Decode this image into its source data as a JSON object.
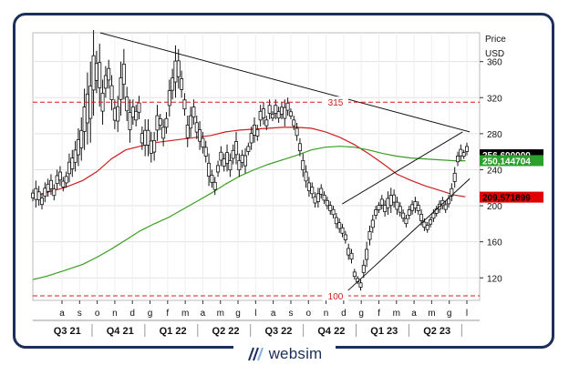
{
  "brand": {
    "name": "websim"
  },
  "chart_data": {
    "type": "candlestick",
    "yaxis": {
      "title": "Price",
      "unit": "USD",
      "ticks": [
        120,
        160,
        200,
        240,
        280,
        320,
        360
      ],
      "ylim": [
        95,
        392
      ]
    },
    "xaxis": {
      "months": [
        "a",
        "s",
        "o",
        "n",
        "d",
        "g",
        "f",
        "m",
        "a",
        "m",
        "g",
        "l",
        "a",
        "s",
        "o",
        "n",
        "d",
        "g",
        "f",
        "m",
        "a",
        "m",
        "g",
        "l"
      ],
      "quarters": [
        "Q3 21",
        "Q4 21",
        "Q1 22",
        "Q2 22",
        "Q3 22",
        "Q4 22",
        "Q1 23",
        "Q2 23"
      ]
    },
    "grid": true,
    "horizontal_lines": [
      {
        "label": "315",
        "value": 315,
        "color": "#d01c1c",
        "style": "dashed"
      },
      {
        "label": "100",
        "value": 100,
        "color": "#d01c1c",
        "style": "dashed"
      }
    ],
    "price_tags": [
      {
        "label": "256,600000",
        "value": 256.6,
        "bg": "#000000",
        "fg": "#ffffff"
      },
      {
        "label": "250,144704",
        "value": 250.14,
        "bg": "#2ca02c",
        "fg": "#ffffff"
      },
      {
        "label": "209,571899",
        "value": 209.57,
        "bg": "#e00000",
        "fg": "#000000"
      }
    ],
    "series": [
      {
        "name": "",
        "kind": "moving_average",
        "color": "#cc1f1f",
        "points": [
          [
            0,
            210
          ],
          [
            10,
            215
          ],
          [
            22,
            220
          ],
          [
            35,
            228
          ],
          [
            45,
            238
          ],
          [
            55,
            252
          ],
          [
            65,
            262
          ],
          [
            75,
            266
          ],
          [
            85,
            270
          ],
          [
            95,
            272
          ],
          [
            105,
            274
          ],
          [
            115,
            276
          ],
          [
            125,
            278
          ],
          [
            135,
            282
          ],
          [
            145,
            284
          ],
          [
            155,
            285
          ],
          [
            165,
            286
          ],
          [
            175,
            287
          ],
          [
            185,
            287
          ],
          [
            195,
            286
          ],
          [
            205,
            282
          ],
          [
            215,
            276
          ],
          [
            225,
            268
          ],
          [
            235,
            258
          ],
          [
            245,
            247
          ],
          [
            255,
            235
          ],
          [
            265,
            228
          ],
          [
            275,
            222
          ],
          [
            285,
            217
          ],
          [
            295,
            212
          ],
          [
            303,
            210
          ]
        ]
      },
      {
        "name": "",
        "kind": "moving_average",
        "color": "#3a9d23",
        "points": [
          [
            0,
            118
          ],
          [
            10,
            122
          ],
          [
            22,
            128
          ],
          [
            35,
            135
          ],
          [
            45,
            143
          ],
          [
            55,
            152
          ],
          [
            65,
            162
          ],
          [
            75,
            172
          ],
          [
            85,
            180
          ],
          [
            95,
            187
          ],
          [
            105,
            196
          ],
          [
            115,
            205
          ],
          [
            125,
            214
          ],
          [
            135,
            224
          ],
          [
            145,
            233
          ],
          [
            155,
            240
          ],
          [
            165,
            246
          ],
          [
            175,
            251
          ],
          [
            185,
            256
          ],
          [
            195,
            262
          ],
          [
            205,
            265
          ],
          [
            215,
            266
          ],
          [
            225,
            265
          ],
          [
            235,
            262
          ],
          [
            245,
            258
          ],
          [
            255,
            255
          ],
          [
            265,
            253
          ],
          [
            275,
            252
          ],
          [
            285,
            251
          ],
          [
            295,
            250
          ],
          [
            303,
            250
          ]
        ]
      }
    ],
    "trendlines": [
      {
        "from": [
          47,
          410
        ],
        "to": [
          305,
          282
        ],
        "color": "#111111"
      },
      {
        "from": [
          216,
          202
        ],
        "to": [
          300,
          282
        ],
        "color": "#111111"
      },
      {
        "from": [
          218,
          103
        ],
        "to": [
          305,
          230
        ],
        "color": "#111111"
      }
    ],
    "candles": [
      [
        205,
        218
      ],
      [
        198,
        228
      ],
      [
        200,
        222
      ],
      [
        196,
        214
      ],
      [
        204,
        226
      ],
      [
        210,
        230
      ],
      [
        212,
        235
      ],
      [
        206,
        224
      ],
      [
        218,
        240
      ],
      [
        222,
        244
      ],
      [
        216,
        232
      ],
      [
        220,
        238
      ],
      [
        226,
        258
      ],
      [
        232,
        262
      ],
      [
        238,
        272
      ],
      [
        244,
        286
      ],
      [
        250,
        298
      ],
      [
        262,
        330
      ],
      [
        268,
        348
      ],
      [
        270,
        360
      ],
      [
        300,
        395
      ],
      [
        325,
        372
      ],
      [
        310,
        380
      ],
      [
        290,
        340
      ],
      [
        320,
        355
      ],
      [
        330,
        362
      ],
      [
        306,
        345
      ],
      [
        285,
        318
      ],
      [
        282,
        322
      ],
      [
        300,
        360
      ],
      [
        318,
        374
      ],
      [
        294,
        332
      ],
      [
        270,
        318
      ],
      [
        290,
        318
      ],
      [
        288,
        312
      ],
      [
        296,
        322
      ],
      [
        262,
        288
      ],
      [
        255,
        296
      ],
      [
        255,
        296
      ],
      [
        248,
        282
      ],
      [
        250,
        282
      ],
      [
        272,
        312
      ],
      [
        284,
        302
      ],
      [
        266,
        296
      ],
      [
        280,
        304
      ],
      [
        299,
        340
      ],
      [
        318,
        352
      ],
      [
        320,
        378
      ],
      [
        330,
        374
      ],
      [
        320,
        350
      ],
      [
        300,
        325
      ],
      [
        265,
        300
      ],
      [
        276,
        310
      ],
      [
        290,
        318
      ],
      [
        274,
        300
      ],
      [
        262,
        294
      ],
      [
        258,
        282
      ],
      [
        248,
        272
      ],
      [
        222,
        258
      ],
      [
        220,
        240
      ],
      [
        212,
        232
      ],
      [
        232,
        250
      ],
      [
        244,
        266
      ],
      [
        238,
        258
      ],
      [
        238,
        268
      ],
      [
        232,
        258
      ],
      [
        246,
        268
      ],
      [
        246,
        282
      ],
      [
        232,
        258
      ],
      [
        242,
        262
      ],
      [
        236,
        264
      ],
      [
        256,
        270
      ],
      [
        262,
        288
      ],
      [
        270,
        298
      ],
      [
        272,
        290
      ],
      [
        288,
        312
      ],
      [
        290,
        315
      ],
      [
        284,
        300
      ],
      [
        296,
        318
      ],
      [
        294,
        305
      ],
      [
        296,
        318
      ],
      [
        292,
        310
      ],
      [
        296,
        315
      ],
      [
        288,
        318
      ],
      [
        300,
        320
      ],
      [
        296,
        308
      ],
      [
        284,
        300
      ],
      [
        272,
        292
      ],
      [
        255,
        275
      ],
      [
        232,
        258
      ],
      [
        220,
        245
      ],
      [
        210,
        232
      ],
      [
        208,
        226
      ],
      [
        198,
        215
      ],
      [
        198,
        220
      ],
      [
        208,
        224
      ],
      [
        202,
        216
      ],
      [
        196,
        210
      ],
      [
        190,
        205
      ],
      [
        186,
        200
      ],
      [
        175,
        192
      ],
      [
        170,
        186
      ],
      [
        165,
        180
      ],
      [
        158,
        172
      ],
      [
        140,
        158
      ],
      [
        136,
        152
      ],
      [
        118,
        130
      ],
      [
        113,
        122
      ],
      [
        106,
        118
      ],
      [
        120,
        140
      ],
      [
        132,
        160
      ],
      [
        156,
        178
      ],
      [
        170,
        190
      ],
      [
        185,
        200
      ],
      [
        192,
        204
      ],
      [
        196,
        212
      ],
      [
        188,
        206
      ],
      [
        190,
        216
      ],
      [
        192,
        220
      ],
      [
        198,
        218
      ],
      [
        190,
        210
      ],
      [
        188,
        204
      ],
      [
        182,
        196
      ],
      [
        176,
        190
      ],
      [
        185,
        200
      ],
      [
        190,
        206
      ],
      [
        192,
        210
      ],
      [
        190,
        205
      ],
      [
        178,
        196
      ],
      [
        172,
        186
      ],
      [
        170,
        182
      ],
      [
        176,
        188
      ],
      [
        182,
        196
      ],
      [
        188,
        200
      ],
      [
        192,
        206
      ],
      [
        196,
        210
      ],
      [
        192,
        205
      ],
      [
        198,
        212
      ],
      [
        205,
        225
      ],
      [
        220,
        243
      ],
      [
        244,
        260
      ],
      [
        250,
        268
      ],
      [
        252,
        262
      ],
      [
        256,
        270
      ]
    ]
  }
}
